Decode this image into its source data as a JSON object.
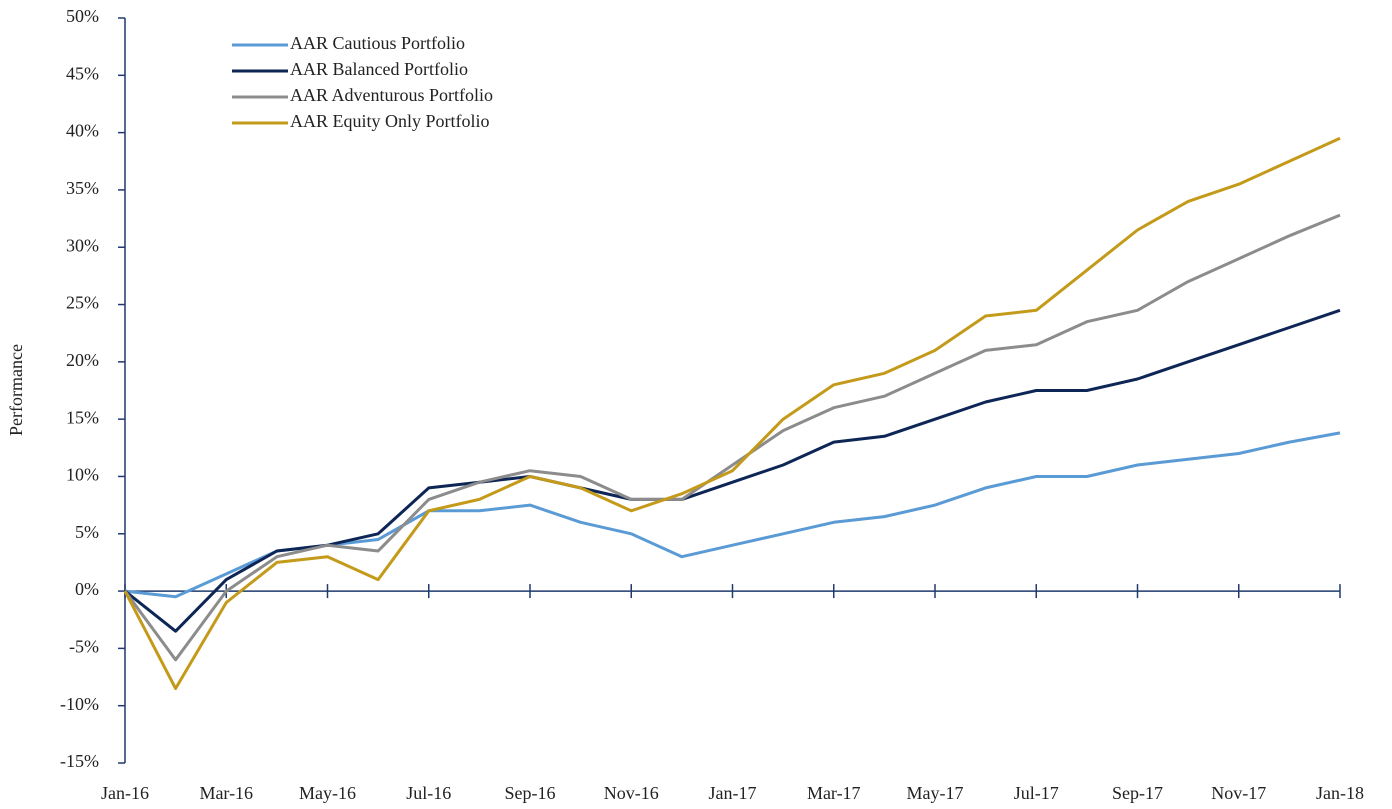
{
  "chart_data": {
    "type": "line",
    "y_label": "Performance",
    "categories": [
      "Jan-16",
      null,
      "Mar-16",
      null,
      "May-16",
      null,
      "Jul-16",
      null,
      "Sep-16",
      null,
      "Nov-16",
      null,
      "Jan-17",
      null,
      "Mar-17",
      null,
      "May-17",
      null,
      "Jul-17",
      null,
      "Sep-17",
      null,
      "Nov-17",
      null,
      "Jan-18"
    ],
    "series": [
      {
        "name": "AAR Cautious Portfolio",
        "color": "#5b9bd5",
        "values": [
          0,
          -0.5,
          1.5,
          3.5,
          4,
          4.5,
          7,
          7,
          7.5,
          6,
          5,
          3,
          4,
          5,
          6,
          6.5,
          7.5,
          9,
          10,
          10,
          11,
          11.5,
          12,
          13,
          13.8
        ]
      },
      {
        "name": "AAR Balanced Portfolio",
        "color": "#0d2656",
        "values": [
          0,
          -3.5,
          1,
          3.5,
          4,
          5,
          9,
          9.5,
          10,
          9,
          8,
          8,
          9.5,
          11,
          13,
          13.5,
          15,
          16.5,
          17.5,
          17.5,
          18.5,
          20,
          21.5,
          23,
          24.5
        ]
      },
      {
        "name": "AAR Adventurous Portfolio",
        "color": "#8c8c8c",
        "values": [
          0,
          -6,
          0,
          3,
          4,
          3.5,
          8,
          9.5,
          10.5,
          10,
          8,
          8,
          11,
          14,
          16,
          17,
          19,
          21,
          21.5,
          23.5,
          24.5,
          27,
          29,
          31,
          32.8
        ]
      },
      {
        "name": "AAR Equity Only Portfolio",
        "color": "#c49a1a",
        "values": [
          0,
          -8.5,
          -1,
          2.5,
          3,
          1,
          7,
          8,
          10,
          9,
          7,
          8.5,
          10.5,
          15,
          18,
          19,
          21,
          24,
          24.5,
          28,
          31.5,
          34,
          35.5,
          37.5,
          39.5
        ]
      }
    ],
    "ylim": [
      -15,
      50
    ],
    "yticks": [
      {
        "value": -15,
        "label": "-15%"
      },
      {
        "value": -10,
        "label": "-10%"
      },
      {
        "value": -5,
        "label": "-5%"
      },
      {
        "value": 0,
        "label": "0%"
      },
      {
        "value": 5,
        "label": "5%"
      },
      {
        "value": 10,
        "label": "10%"
      },
      {
        "value": 15,
        "label": "15%"
      },
      {
        "value": 20,
        "label": "20%"
      },
      {
        "value": 25,
        "label": "25%"
      },
      {
        "value": 30,
        "label": "30%"
      },
      {
        "value": 35,
        "label": "35%"
      },
      {
        "value": 40,
        "label": "40%"
      },
      {
        "value": 45,
        "label": "45%"
      },
      {
        "value": 50,
        "label": "50%"
      }
    ],
    "legend": "upper left"
  }
}
